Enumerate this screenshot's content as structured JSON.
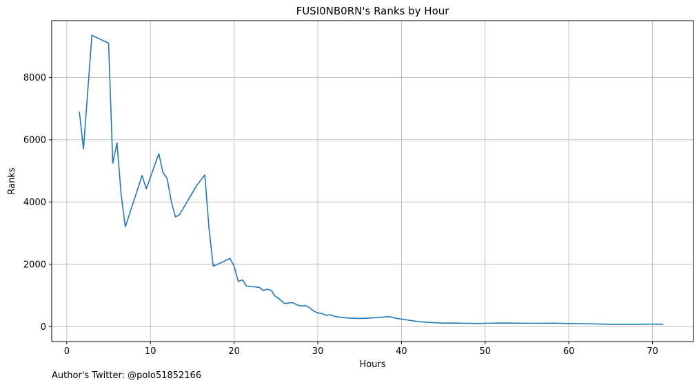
{
  "chart_data": {
    "type": "line",
    "title": "FUSI0NB0RN's Ranks by Hour",
    "xlabel": "Hours",
    "ylabel": "Ranks",
    "xlim": [
      -1.8,
      74.9
    ],
    "ylim": [
      -480,
      9820
    ],
    "xticks": [
      0,
      10,
      20,
      30,
      40,
      50,
      60,
      70
    ],
    "yticks": [
      0,
      2000,
      4000,
      6000,
      8000
    ],
    "grid": true,
    "series": [
      {
        "color": "#1f77b4",
        "x": [
          1.5,
          2.0,
          3.0,
          5.0,
          5.5,
          6.0,
          6.5,
          7.0,
          9.0,
          9.5,
          11.0,
          11.5,
          12.0,
          12.5,
          13.0,
          13.5,
          15.5,
          16.5,
          17.0,
          17.5,
          18.5,
          19.5,
          20.0,
          20.5,
          21.0,
          21.5,
          23.0,
          23.5,
          24.0,
          24.5,
          24.8,
          25.0,
          25.5,
          26.0,
          26.5,
          27.0,
          27.5,
          28.0,
          28.5,
          29.0,
          29.5,
          30.0,
          30.5,
          31.0,
          31.5,
          32.0,
          33.0,
          34.0,
          35.0,
          36.0,
          37.0,
          38.5,
          39.0,
          39.5,
          40.0,
          41.0,
          42.0,
          43.0,
          44.0,
          45.0,
          46.0,
          47.0,
          48.0,
          49.0,
          50.0,
          52.0,
          54.0,
          56.0,
          58.0,
          60.0,
          62.0,
          64.0,
          66.0,
          68.0,
          70.0,
          71.3
        ],
        "y": [
          6900,
          5700,
          9350,
          9100,
          5250,
          5900,
          4250,
          3200,
          4850,
          4420,
          5550,
          4950,
          4750,
          4000,
          3520,
          3600,
          4520,
          4870,
          3150,
          1940,
          2060,
          2190,
          1940,
          1450,
          1500,
          1300,
          1260,
          1160,
          1200,
          1150,
          1000,
          960,
          870,
          740,
          760,
          770,
          700,
          660,
          680,
          610,
          500,
          440,
          420,
          360,
          380,
          330,
          290,
          270,
          260,
          270,
          290,
          320,
          290,
          260,
          240,
          200,
          160,
          140,
          125,
          110,
          115,
          110,
          105,
          100,
          105,
          115,
          110,
          105,
          110,
          100,
          90,
          80,
          70,
          75,
          80,
          75
        ]
      }
    ]
  },
  "footer": {
    "text": "Author's Twitter: @polo51852166"
  }
}
